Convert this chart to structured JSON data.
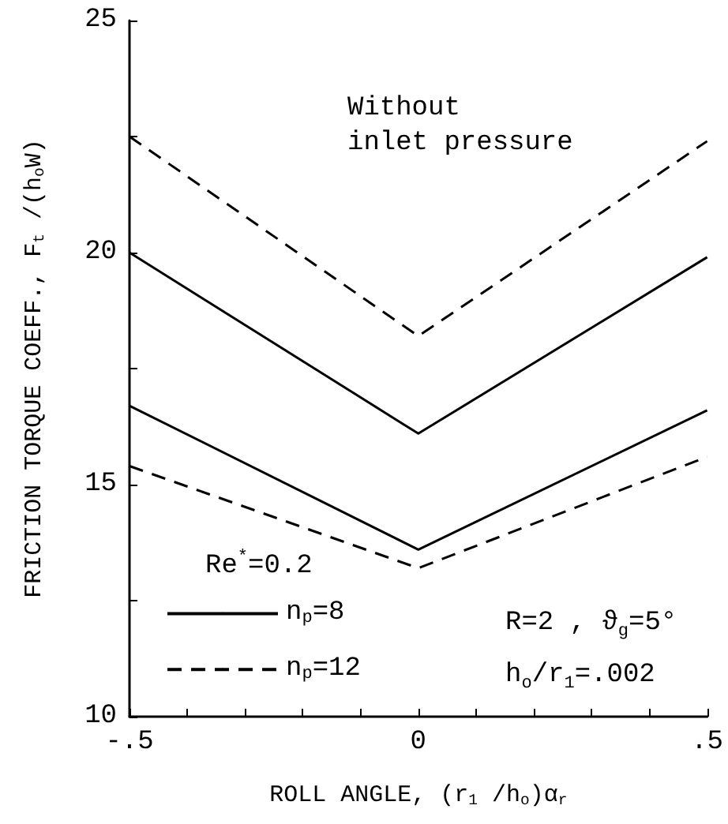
{
  "chart_data": {
    "type": "line",
    "xlabel": "ROLL ANGLE, (r$_{1}$ /h$_{o}$)α$_{r}$",
    "ylabel": "FRICTION TORQUE COEFF., F$_{t}$ /(h$_{o}$W)",
    "x": [
      -0.5,
      0,
      0.5
    ],
    "series": [
      {
        "name": "n$_{p}$=12",
        "color": "#000000",
        "line_style": "dashed",
        "values": [
          22.5,
          18.2,
          22.4
        ]
      },
      {
        "name": "n$_{p}$=8",
        "color": "#000000",
        "line_style": "solid",
        "values": [
          20.0,
          16.1,
          19.9
        ]
      },
      {
        "color": "#000000",
        "line_style": "solid",
        "values": [
          16.7,
          13.6,
          16.6
        ]
      },
      {
        "color": "#000000",
        "line_style": "dashed",
        "values": [
          15.4,
          13.2,
          15.6
        ]
      }
    ],
    "xlim": [
      -0.5,
      0.5
    ],
    "ylim": [
      10,
      25
    ],
    "xticks": [
      {
        "value": -0.5,
        "label": "-.5"
      },
      {
        "value": -0.4,
        "label": null
      },
      {
        "value": -0.3,
        "label": null
      },
      {
        "value": -0.2,
        "label": null
      },
      {
        "value": -0.1,
        "label": null
      },
      0,
      {
        "value": 0.1,
        "label": null
      },
      {
        "value": 0.2,
        "label": null
      },
      {
        "value": 0.3,
        "label": null
      },
      {
        "value": 0.4,
        "label": null
      },
      {
        "value": 0.5,
        "label": ".5"
      }
    ],
    "yticks": [
      10,
      {
        "value": 12.5,
        "label": null
      },
      15,
      {
        "value": 17.5,
        "label": null
      },
      20,
      {
        "value": 22.5,
        "label": null
      },
      25
    ],
    "annotations": [
      "Without\ninlet pressure",
      "Re$^{*}$=0.2",
      "R=2 , ϑ$_{g}$=5°",
      "h$_{o}$/r$_{1}$=.002"
    ],
    "grid": false,
    "legend": "bottom left",
    "marker": "none"
  }
}
